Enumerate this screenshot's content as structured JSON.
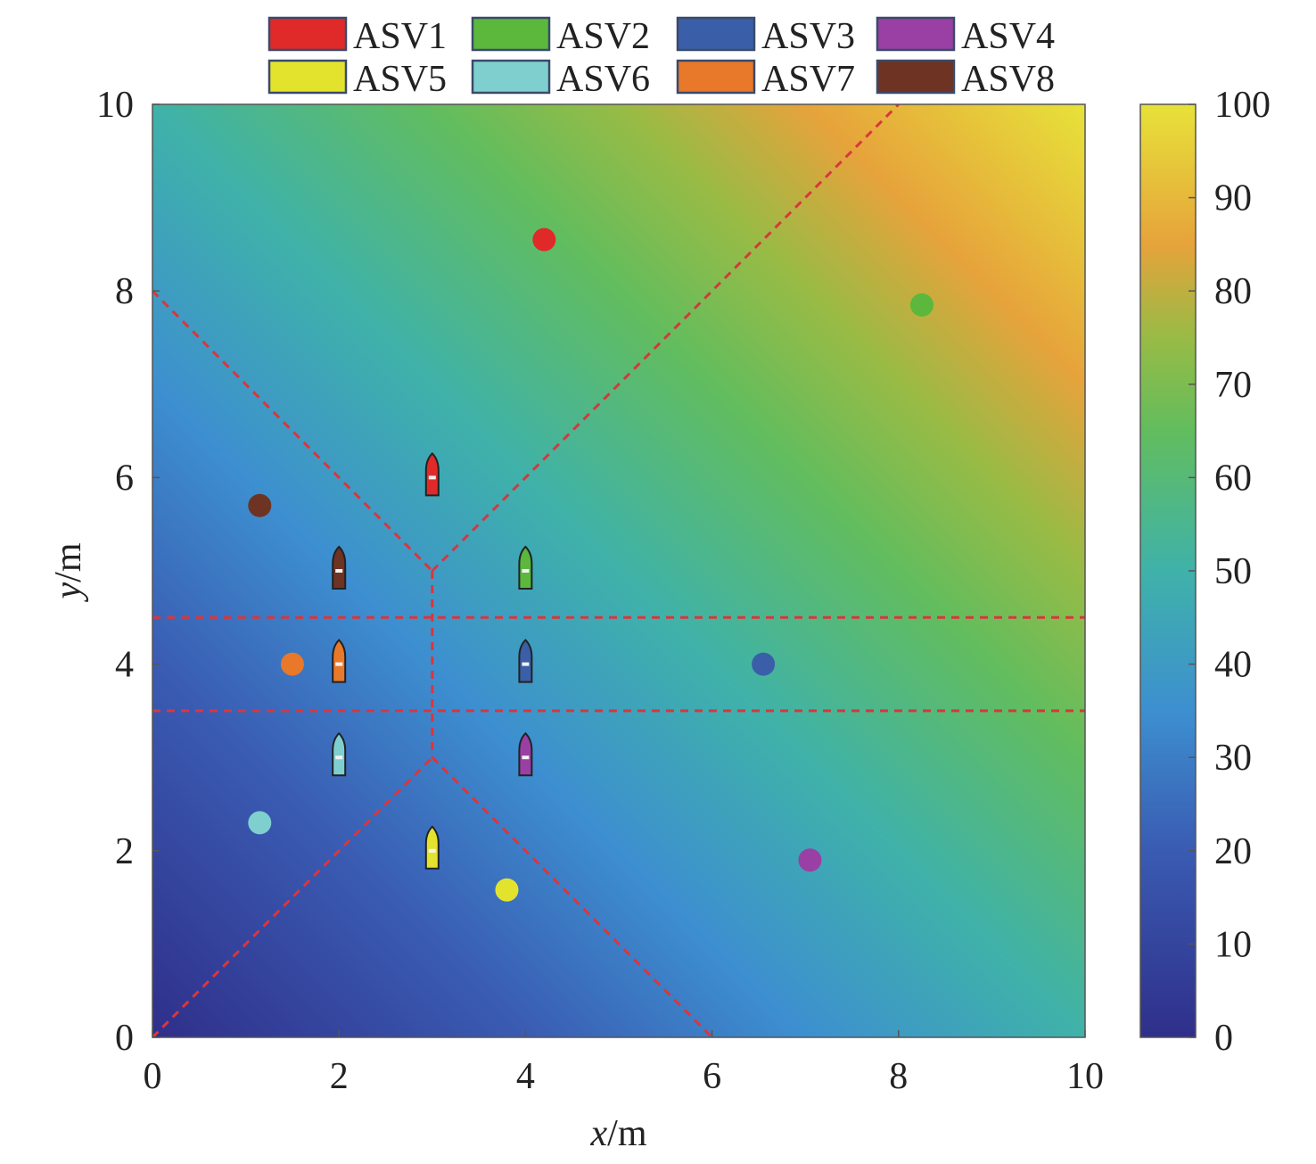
{
  "chart_data": {
    "type": "heatmap",
    "title": "",
    "xlabel": {
      "var": "x",
      "unit": "/m"
    },
    "ylabel": {
      "var": "y",
      "unit": "/m"
    },
    "xlim": [
      0,
      10
    ],
    "ylim": [
      0,
      10
    ],
    "x_ticks": [
      "0",
      "2",
      "4",
      "6",
      "8",
      "10"
    ],
    "y_ticks": [
      "0",
      "2",
      "4",
      "6",
      "8",
      "10"
    ],
    "grid": false,
    "legend_position": "top",
    "colorbar": {
      "range": [
        0,
        100
      ],
      "ticks": [
        "0",
        "10",
        "20",
        "30",
        "40",
        "50",
        "60",
        "70",
        "80",
        "90",
        "100"
      ],
      "stops": [
        {
          "v": 0,
          "color": "#2f2f8a"
        },
        {
          "v": 20,
          "color": "#3a5bb2"
        },
        {
          "v": 35,
          "color": "#3d8fd0"
        },
        {
          "v": 50,
          "color": "#3fb2a9"
        },
        {
          "v": 65,
          "color": "#62bd5e"
        },
        {
          "v": 75,
          "color": "#98bb45"
        },
        {
          "v": 85,
          "color": "#e6a33b"
        },
        {
          "v": 100,
          "color": "#e7e23a"
        }
      ]
    },
    "field": {
      "description_values": "value increases toward top-right",
      "corner_values": {
        "x0y0": 0,
        "x10y10": 100
      }
    },
    "series": [
      {
        "name": "ASV1",
        "color": "#e02a2a",
        "vessel": [
          3,
          6
        ],
        "target": [
          4.2,
          8.55
        ]
      },
      {
        "name": "ASV2",
        "color": "#5bb83c",
        "vessel": [
          4,
          5
        ],
        "target": [
          8.25,
          7.85
        ]
      },
      {
        "name": "ASV3",
        "color": "#3a5fa8",
        "vessel": [
          4,
          4
        ],
        "target": [
          6.55,
          4.0
        ]
      },
      {
        "name": "ASV4",
        "color": "#9a3fa3",
        "vessel": [
          4,
          3
        ],
        "target": [
          7.05,
          1.9
        ]
      },
      {
        "name": "ASV5",
        "color": "#e3e32e",
        "vessel": [
          3,
          2
        ],
        "target": [
          3.8,
          1.58
        ]
      },
      {
        "name": "ASV6",
        "color": "#7fcfcf",
        "vessel": [
          2,
          3
        ],
        "target": [
          1.15,
          2.3
        ]
      },
      {
        "name": "ASV7",
        "color": "#e8782a",
        "vessel": [
          2,
          4
        ],
        "target": [
          1.5,
          4.0
        ]
      },
      {
        "name": "ASV8",
        "color": "#6e3322",
        "vessel": [
          2,
          5
        ],
        "target": [
          1.15,
          5.7
        ]
      }
    ],
    "boundaries": [
      {
        "from": [
          0,
          8
        ],
        "to": [
          3,
          5
        ]
      },
      {
        "from": [
          3,
          5
        ],
        "to": [
          8,
          10
        ]
      },
      {
        "from": [
          3,
          5
        ],
        "to": [
          3,
          3
        ]
      },
      {
        "from": [
          0,
          0
        ],
        "to": [
          3,
          3
        ]
      },
      {
        "from": [
          3,
          3
        ],
        "to": [
          6,
          0
        ]
      },
      {
        "from": [
          0,
          4.5
        ],
        "to": [
          10,
          4.5
        ]
      },
      {
        "from": [
          0,
          3.5
        ],
        "to": [
          10,
          3.5
        ]
      }
    ],
    "boundary_color": "#d9363e"
  }
}
